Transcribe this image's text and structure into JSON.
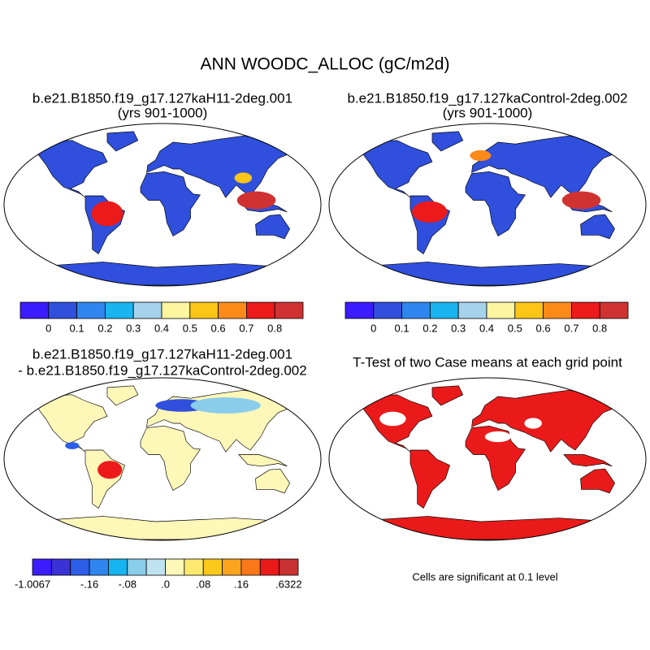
{
  "title": "ANN WOODC_ALLOC (gC/m2d)",
  "panels": [
    {
      "title": [
        "b.e21.B1850.f19_g17.127kaH11-2deg.001",
        "(yrs 901-1000)"
      ]
    },
    {
      "title": [
        "b.e21.B1850.f19_g17.127kaControl-2deg.002",
        "(yrs 901-1000)"
      ]
    },
    {
      "title": [
        "b.e21.B1850.f19_g17.127kaH11-2deg.001",
        "- b.e21.B1850.f19_g17.127kaControl-2deg.002"
      ]
    },
    {
      "title": [
        "T-Test of two Case means at each grid point"
      ]
    }
  ],
  "colorbars": [
    {
      "colors": [
        "#3b1cff",
        "#2f4fdc",
        "#2e86ee",
        "#1ab4f0",
        "#a6d2eb",
        "#fdf5a0",
        "#fcc517",
        "#fb8a18",
        "#ec1a1a",
        "#d03232"
      ],
      "labels": [
        "0",
        "0.1",
        "0.2",
        "0.3",
        "0.4",
        "0.5",
        "0.6",
        "0.7",
        "0.8"
      ]
    },
    {
      "colors": [
        "#3b1cff",
        "#2f4fdc",
        "#2e86ee",
        "#1ab4f0",
        "#a6d2eb",
        "#fdf5a0",
        "#fcc517",
        "#fb8a18",
        "#ec1a1a",
        "#d03232"
      ],
      "labels": [
        "0",
        "0.1",
        "0.2",
        "0.3",
        "0.4",
        "0.5",
        "0.6",
        "0.7",
        "0.8"
      ]
    },
    {
      "colors": [
        "#3b1cff",
        "#3a32d4",
        "#2e5ee8",
        "#2f86ee",
        "#16b4f0",
        "#89cdeb",
        "#bfe2f0",
        "#fdf7b8",
        "#fdea6e",
        "#fcc81a",
        "#fca41e",
        "#fb7818",
        "#ea1a1a",
        "#c83232"
      ],
      "labels": [
        "-1.0067",
        "-.16",
        "-.08",
        ".0",
        ".08",
        ".16",
        ".6322"
      ]
    }
  ],
  "note": "Cells are significant at 0.1 level"
}
